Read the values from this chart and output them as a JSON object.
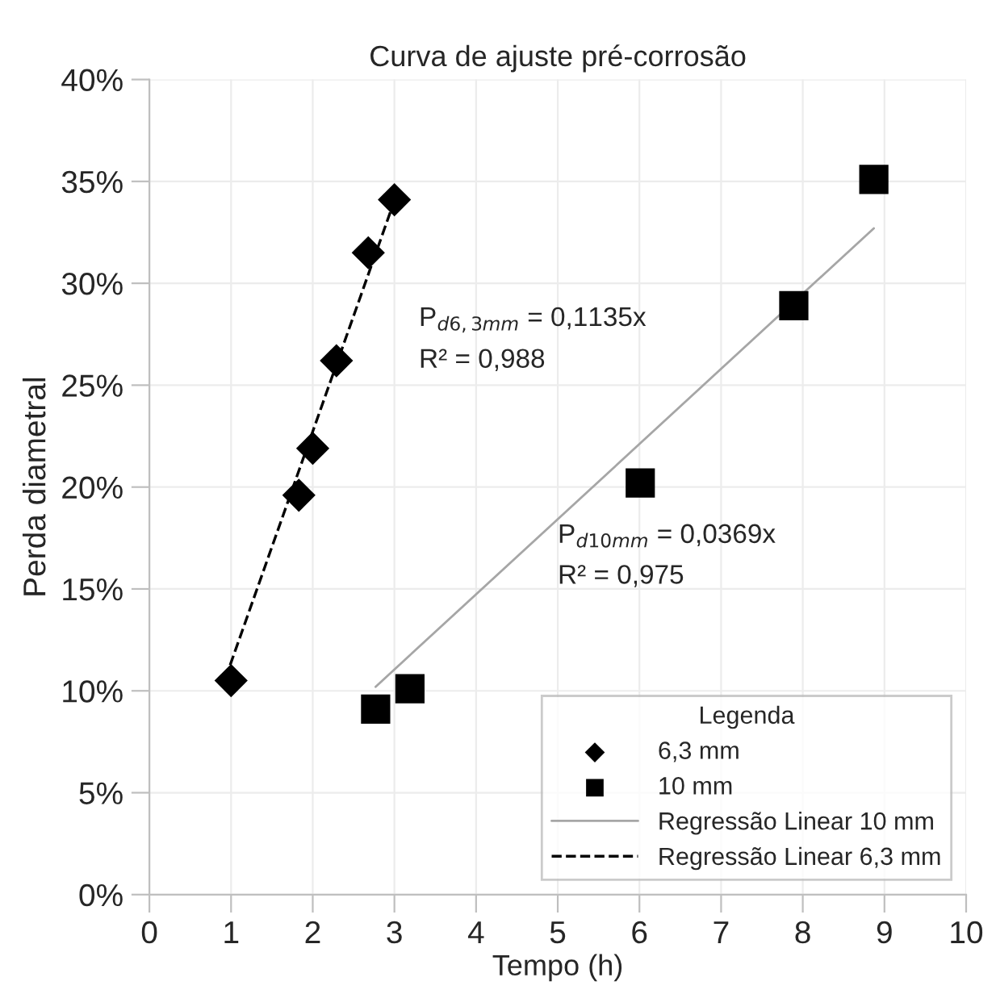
{
  "chart_data": {
    "type": "scatter",
    "title": "Curva de ajuste pré-corrosão",
    "xlabel": "Tempo (h)",
    "ylabel": "Perda diametral",
    "legend_title": "Legenda",
    "legend": "bottom right",
    "grid": true,
    "xlim": [
      0,
      10
    ],
    "xticks": [
      0,
      1,
      2,
      3,
      4,
      5,
      6,
      7,
      8,
      9,
      10
    ],
    "ylim": [
      0,
      40
    ],
    "yticks": [
      {
        "value": 0,
        "label": "0%"
      },
      {
        "value": 5,
        "label": "5%"
      },
      {
        "value": 10,
        "label": "10%"
      },
      {
        "value": 15,
        "label": "15%"
      },
      {
        "value": 20,
        "label": "20%"
      },
      {
        "value": 25,
        "label": "25%"
      },
      {
        "value": 30,
        "label": "30%"
      },
      {
        "value": 35,
        "label": "35%"
      },
      {
        "value": 40,
        "label": "40%"
      }
    ],
    "series": [
      {
        "name": "6,3 mm",
        "marker": "diamond",
        "color": "#000000",
        "x": [
          1.0,
          1.83,
          2.0,
          2.29,
          2.68,
          3.0
        ],
        "values": [
          10.5,
          19.6,
          21.9,
          26.2,
          31.5,
          34.1
        ]
      },
      {
        "name": "10 mm",
        "marker": "square",
        "color": "#000000",
        "x": [
          2.77,
          3.19,
          6.01,
          7.89,
          8.87
        ],
        "values": [
          9.1,
          10.1,
          20.2,
          28.9,
          35.1
        ]
      },
      {
        "name": "Regressão Linear 10 mm",
        "type": "line",
        "line_style": "solid",
        "color": "#a6a6a6",
        "x": [
          2.77,
          8.87
        ],
        "values": [
          10.2,
          32.7
        ]
      },
      {
        "name": "Regressão Linear 6,3 mm",
        "type": "line",
        "line_style": "dashed",
        "color": "#000000",
        "x": [
          0.93,
          3.03
        ],
        "values": [
          10.6,
          34.4
        ]
      }
    ],
    "annotations": [
      "P$_{d6,3mm}$ = 0,1135x",
      "R² = 0,988",
      "P$_{d10mm}$ = 0,0369x",
      "R² = 0,975"
    ]
  }
}
